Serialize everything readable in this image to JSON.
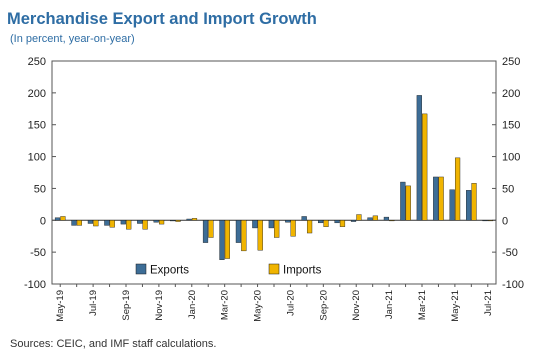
{
  "chart_data": {
    "type": "bar",
    "title": "Merchandise Export and Import Growth",
    "subtitle": "(In percent, year-on-year)",
    "source": "Sources: CEIC, and IMF staff calculations.",
    "ylim": [
      -100,
      250
    ],
    "yticks": [
      -100,
      -50,
      0,
      50,
      100,
      150,
      200,
      250
    ],
    "legend_position": "bottom-left",
    "grid": false,
    "categories": [
      "May-19",
      "Jun-19",
      "Jul-19",
      "Aug-19",
      "Sep-19",
      "Oct-19",
      "Nov-19",
      "Dec-19",
      "Jan-20",
      "Feb-20",
      "Mar-20",
      "Apr-20",
      "May-20",
      "Jun-20",
      "Jul-20",
      "Aug-20",
      "Sep-20",
      "Oct-20",
      "Nov-20",
      "Dec-20",
      "Jan-21",
      "Feb-21",
      "Mar-21",
      "Apr-21",
      "May-21",
      "Jun-21",
      "Jul-21"
    ],
    "xtick_labels": [
      "May-19",
      "Jul-19",
      "Sep-19",
      "Nov-19",
      "Jan-20",
      "Mar-20",
      "May-20",
      "Jul-20",
      "Sep-20",
      "Nov-20",
      "Jan-21",
      "Mar-21",
      "May-21",
      "Jul-21"
    ],
    "series": [
      {
        "name": "Exports",
        "color": "#3d6d96",
        "values": [
          4,
          -8,
          -5,
          -8,
          -6,
          -5,
          -3,
          -1,
          2,
          -35,
          -62,
          -35,
          -12,
          -12,
          -3,
          6,
          -4,
          -4,
          -2,
          4,
          5,
          60,
          196,
          68,
          48,
          47,
          0
        ]
      },
      {
        "name": "Imports",
        "color": "#f0b400",
        "values": [
          6,
          -8,
          -9,
          -11,
          -14,
          -14,
          -6,
          -2,
          3,
          -27,
          -60,
          -48,
          -47,
          -27,
          -25,
          -20,
          -10,
          -10,
          9,
          7,
          0,
          54,
          167,
          68,
          98,
          58,
          0
        ]
      }
    ]
  }
}
